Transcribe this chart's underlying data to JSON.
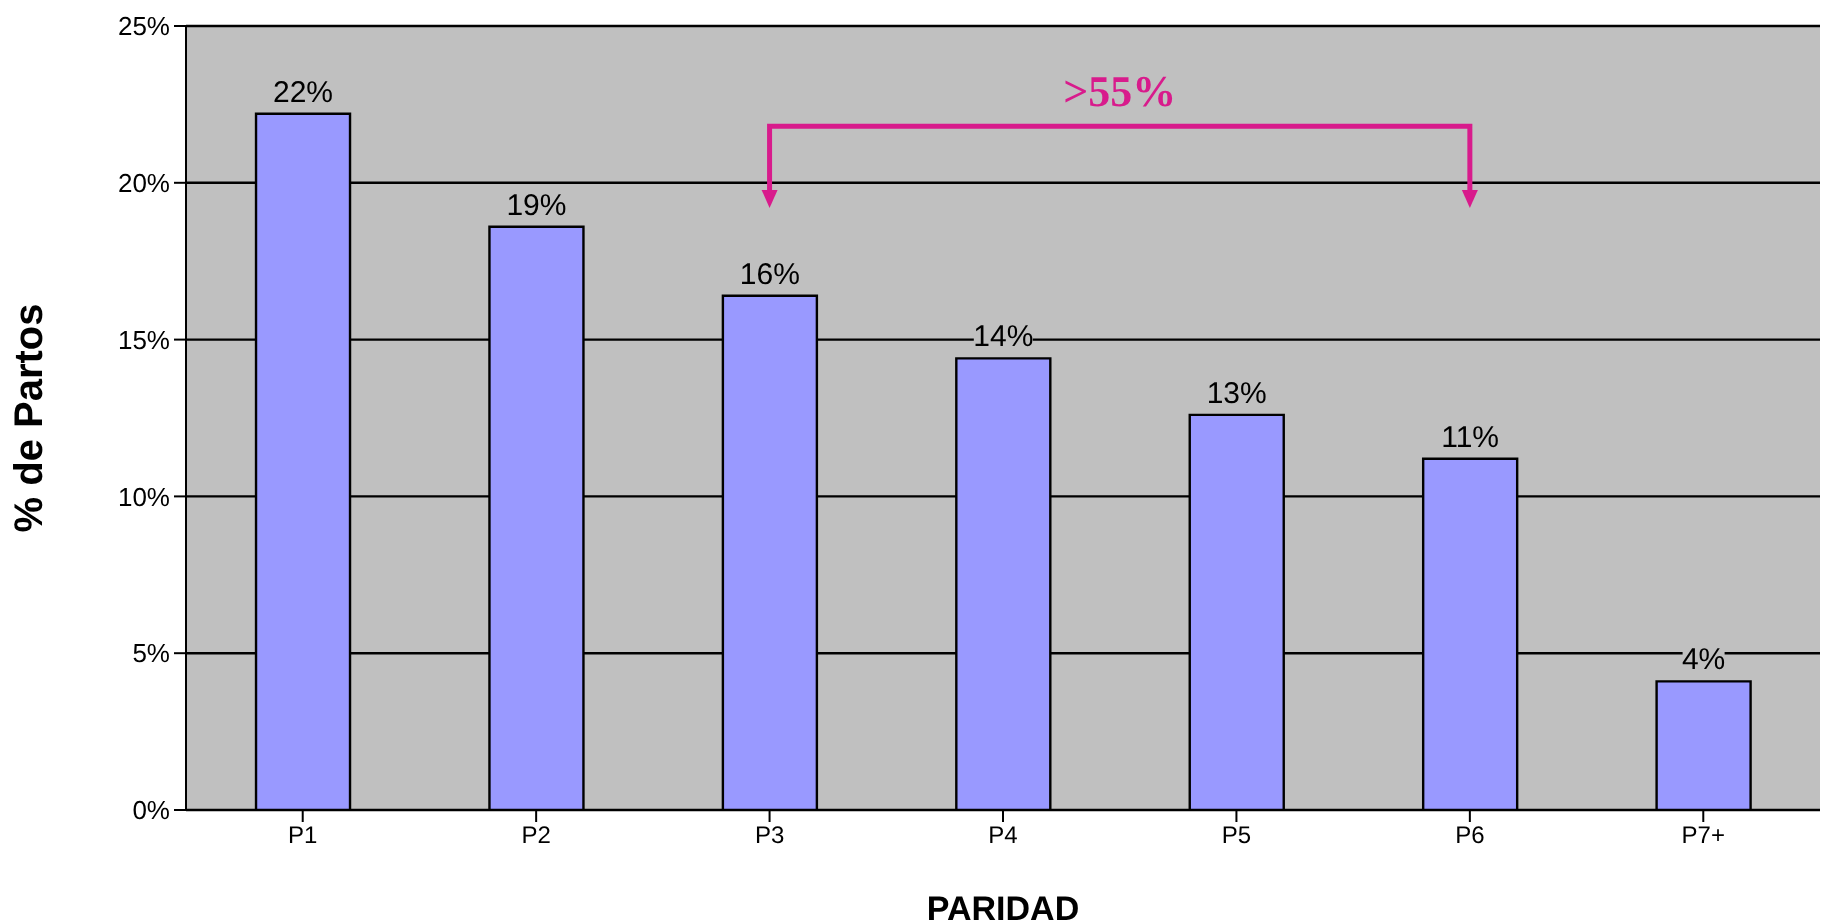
{
  "chart_data": {
    "type": "bar",
    "xlabel": "PARIDAD",
    "ylabel": "% de Partos",
    "categories": [
      "P1",
      "P2",
      "P3",
      "P4",
      "P5",
      "P6",
      "P7+"
    ],
    "values": [
      22.2,
      18.6,
      16.4,
      14.4,
      12.6,
      11.2,
      4.1
    ],
    "value_labels": [
      "22%",
      "19%",
      "16%",
      "14%",
      "13%",
      "11%",
      "4%"
    ],
    "color": "#9999ff",
    "ylim": [
      0,
      25
    ],
    "yticks": [
      {
        "value": 0,
        "label": "0%"
      },
      {
        "value": 5,
        "label": "5%"
      },
      {
        "value": 10,
        "label": "10%"
      },
      {
        "value": 15,
        "label": "15%"
      },
      {
        "value": 20,
        "label": "20%"
      },
      {
        "value": 25,
        "label": "25%"
      }
    ],
    "grid": "y",
    "annotations": [
      ">55%"
    ]
  }
}
